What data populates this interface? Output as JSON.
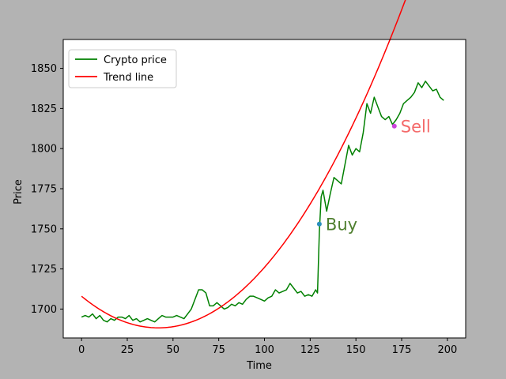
{
  "chart_data": {
    "type": "line",
    "title": "",
    "xlabel": "Time",
    "ylabel": "Price",
    "xlim": [
      -10,
      210
    ],
    "ylim": [
      1682,
      1868
    ],
    "xticks": [
      0,
      25,
      50,
      75,
      100,
      125,
      150,
      175,
      200
    ],
    "yticks": [
      1700,
      1725,
      1750,
      1775,
      1800,
      1825,
      1850
    ],
    "grid": false,
    "legend_position": "top-left",
    "series": [
      {
        "name": "Crypto price",
        "color": "#008000",
        "x": [
          0,
          2,
          4,
          6,
          8,
          10,
          12,
          14,
          16,
          18,
          20,
          22,
          24,
          26,
          28,
          30,
          32,
          34,
          36,
          38,
          40,
          42,
          44,
          46,
          48,
          50,
          52,
          54,
          56,
          58,
          60,
          62,
          64,
          66,
          68,
          70,
          72,
          74,
          76,
          78,
          80,
          82,
          84,
          86,
          88,
          90,
          92,
          94,
          96,
          98,
          100,
          102,
          104,
          106,
          108,
          110,
          112,
          114,
          116,
          118,
          120,
          122,
          124,
          126,
          128,
          129,
          130,
          131,
          132,
          134,
          136,
          138,
          140,
          142,
          144,
          146,
          148,
          150,
          152,
          154,
          156,
          158,
          160,
          162,
          164,
          166,
          168,
          170,
          172,
          174,
          176,
          178,
          180,
          182,
          184,
          186,
          188,
          190,
          192,
          194,
          196,
          198
        ],
        "values": [
          1695,
          1696,
          1695,
          1697,
          1694,
          1696,
          1693,
          1692,
          1694,
          1693,
          1695,
          1695,
          1694,
          1696,
          1693,
          1694,
          1692,
          1693,
          1694,
          1693,
          1692,
          1694,
          1696,
          1695,
          1695,
          1695,
          1696,
          1695,
          1694,
          1697,
          1700,
          1706,
          1712,
          1712,
          1710,
          1702,
          1702,
          1704,
          1702,
          1700,
          1701,
          1703,
          1702,
          1704,
          1703,
          1706,
          1708,
          1708,
          1707,
          1706,
          1705,
          1707,
          1708,
          1712,
          1710,
          1711,
          1712,
          1716,
          1713,
          1710,
          1711,
          1708,
          1709,
          1708,
          1712,
          1710,
          1748,
          1770,
          1774,
          1761,
          1772,
          1782,
          1780,
          1778,
          1790,
          1802,
          1796,
          1800,
          1798,
          1810,
          1828,
          1822,
          1832,
          1826,
          1820,
          1818,
          1820,
          1815,
          1818,
          1822,
          1828,
          1830,
          1832,
          1835,
          1841,
          1838,
          1842,
          1839,
          1836,
          1837,
          1832,
          1830
        ],
        "line_width": 1.5
      },
      {
        "name": "Trend line",
        "color": "#ff0000",
        "type": "quadratic",
        "coefficients": [
          0.0112,
          -0.94,
          1708
        ],
        "x_range": [
          0,
          199
        ],
        "line_width": 1.5
      }
    ],
    "annotations": [
      {
        "label": "Buy",
        "x": 130,
        "y": 1753,
        "marker_color": "#2a8fbd",
        "text_color": "#4f7f2f"
      },
      {
        "label": "Sell",
        "x": 171,
        "y": 1814,
        "marker_color": "#cc44dd",
        "text_color": "#f46a6a"
      }
    ]
  }
}
